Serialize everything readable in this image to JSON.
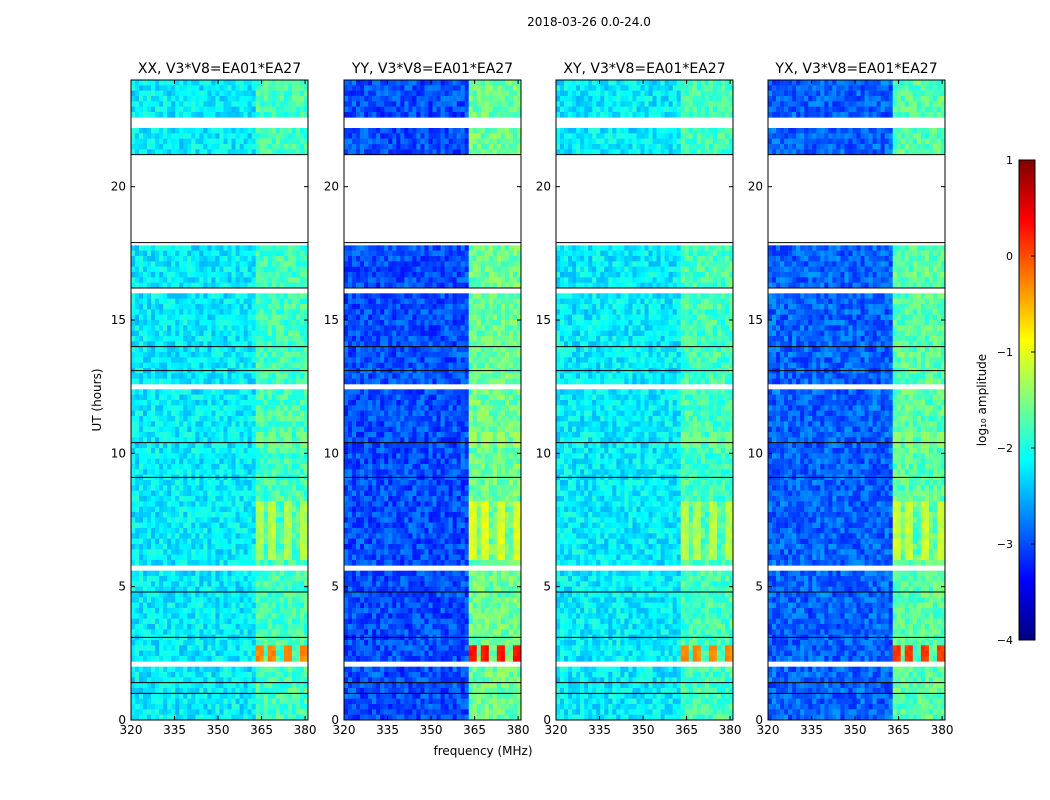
{
  "figure": {
    "suptitle": "2018-03-26 0.0-24.0",
    "xlabel": "frequency (MHz)",
    "ylabel": "UT (hours)"
  },
  "colorbar": {
    "label": "log₁₀ amplitude",
    "range": [
      -4,
      1
    ],
    "ticks": [
      "1",
      "0",
      "−1",
      "−2",
      "−3",
      "−4"
    ],
    "colormap": "jet",
    "colors": [
      "#00007f",
      "#0000ff",
      "#007fff",
      "#00ffff",
      "#7fff7f",
      "#ffff00",
      "#ff7f00",
      "#ff0000",
      "#7f0000"
    ]
  },
  "chart_data": {
    "type": "heatmap",
    "panels": [
      {
        "title": "XX, V3*V8=EA01*EA27",
        "polarization": "XX",
        "base_log_amp": -2.2,
        "band_log_amp": -1.8,
        "peak_log_amp": -0.4
      },
      {
        "title": "YY, V3*V8=EA01*EA27",
        "polarization": "YY",
        "base_log_amp": -3.0,
        "band_log_amp": -1.6,
        "peak_log_amp": 0.2
      },
      {
        "title": "XY, V3*V8=EA01*EA27",
        "polarization": "XY",
        "base_log_amp": -2.2,
        "band_log_amp": -1.8,
        "peak_log_amp": -0.4
      },
      {
        "title": "YX, V3*V8=EA01*EA27",
        "polarization": "YX",
        "base_log_amp": -2.9,
        "band_log_amp": -1.7,
        "peak_log_amp": 0.0
      }
    ],
    "x_range_mhz": [
      320,
      381
    ],
    "x_ticks": [
      320,
      335,
      350,
      365,
      380
    ],
    "y_range_hours": [
      0,
      24
    ],
    "y_ticks": [
      0,
      5,
      10,
      15,
      20
    ],
    "bright_band_mhz": [
      363,
      381
    ],
    "bright_channels_mhz": [
      364,
      369,
      374,
      379
    ],
    "data_gaps_hours": [
      [
        17.9,
        21.2
      ],
      [
        16.0,
        16.2
      ],
      [
        22.2,
        22.6
      ],
      [
        12.4,
        12.6
      ],
      [
        5.6,
        5.8
      ],
      [
        2.1,
        2.2
      ]
    ],
    "peak_rfi_hours": [
      2.3,
      2.8
    ]
  }
}
